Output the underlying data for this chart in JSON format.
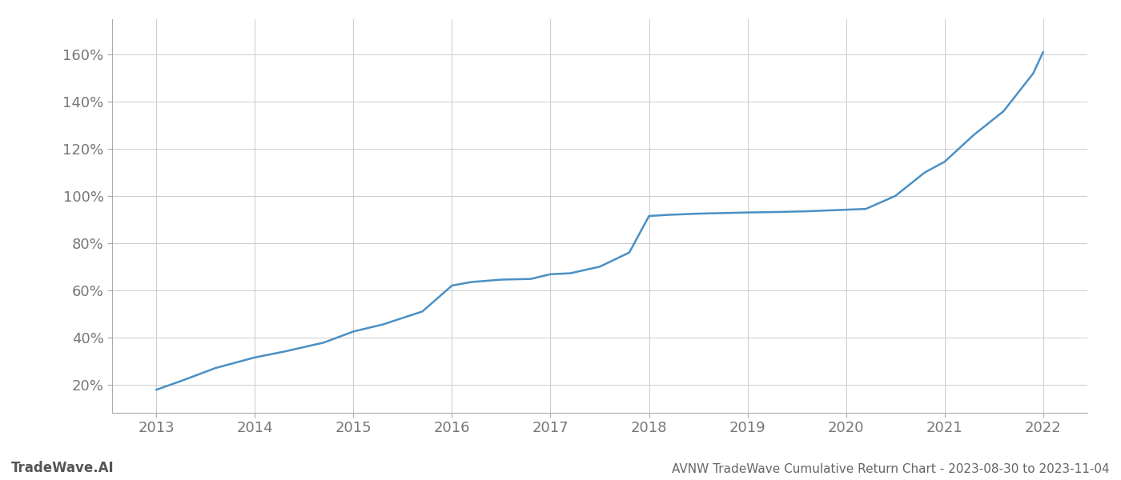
{
  "x_years": [
    2013.0,
    2013.25,
    2013.6,
    2014.0,
    2014.3,
    2014.7,
    2015.0,
    2015.3,
    2015.7,
    2016.0,
    2016.2,
    2016.5,
    2016.8,
    2017.0,
    2017.2,
    2017.5,
    2017.8,
    2018.0,
    2018.2,
    2018.5,
    2018.8,
    2019.0,
    2019.3,
    2019.6,
    2019.9,
    2020.2,
    2020.5,
    2020.8,
    2021.0,
    2021.3,
    2021.6,
    2021.9,
    2022.0
  ],
  "y_values": [
    0.178,
    0.215,
    0.27,
    0.315,
    0.34,
    0.378,
    0.425,
    0.455,
    0.51,
    0.62,
    0.635,
    0.645,
    0.648,
    0.668,
    0.672,
    0.7,
    0.76,
    0.915,
    0.92,
    0.925,
    0.928,
    0.93,
    0.932,
    0.935,
    0.94,
    0.945,
    1.0,
    1.1,
    1.145,
    1.26,
    1.36,
    1.52,
    1.61
  ],
  "line_color": "#4a90c4",
  "line_width": 1.8,
  "title": "AVNW TradeWave Cumulative Return Chart - 2023-08-30 to 2023-11-04",
  "watermark_left": "TradeWave.AI",
  "xlim": [
    2012.55,
    2022.45
  ],
  "ylim": [
    0.08,
    1.75
  ],
  "yticks": [
    0.2,
    0.4,
    0.6,
    0.8,
    1.0,
    1.2,
    1.4,
    1.6
  ],
  "ytick_labels": [
    "20%",
    "40%",
    "60%",
    "80%",
    "100%",
    "120%",
    "140%",
    "160%"
  ],
  "xtick_labels": [
    "2013",
    "2014",
    "2015",
    "2016",
    "2017",
    "2018",
    "2019",
    "2020",
    "2021",
    "2022"
  ],
  "xtick_values": [
    2013,
    2014,
    2015,
    2016,
    2017,
    2018,
    2019,
    2020,
    2021,
    2022
  ],
  "grid_color": "#cccccc",
  "background_color": "#ffffff",
  "font_color": "#777777",
  "watermark_color": "#555555",
  "title_color": "#666666"
}
